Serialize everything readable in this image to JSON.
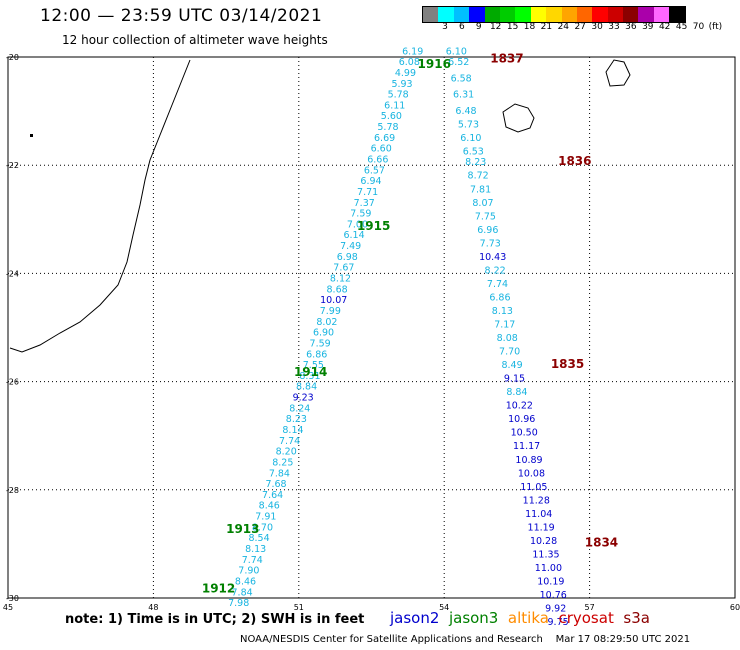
{
  "header": {
    "title": "12:00 — 23:59 UTC 03/14/2021",
    "subtitle": "12 hour collection of altimeter wave heights"
  },
  "colorbar": {
    "colors": [
      "#808080",
      "#00ffff",
      "#00bfff",
      "#0000ff",
      "#00aa00",
      "#00cc00",
      "#00ff00",
      "#ffff00",
      "#ffd700",
      "#ffa500",
      "#ff6600",
      "#ff0000",
      "#cc0000",
      "#8b0000",
      "#aa00aa",
      "#ff66ff",
      "#000000"
    ],
    "labels": [
      "3",
      "6",
      "9",
      "12",
      "15",
      "18",
      "21",
      "24",
      "27",
      "30",
      "33",
      "36",
      "39",
      "42",
      "45",
      "70",
      "(ft)"
    ]
  },
  "map": {
    "lat_labels": [
      "-20",
      "-22",
      "-24",
      "-26",
      "-28",
      "-30"
    ],
    "lon_labels": [
      "45",
      "48",
      "51",
      "54",
      "57",
      "60"
    ],
    "satellite_colors": {
      "jason2": "#0000cc",
      "jason3": "#008000",
      "altika": "#ff8c00",
      "cryosat": "#cc0000",
      "s3a": "#8b0000"
    },
    "pass_labels": [
      {
        "text": "1916",
        "lon": 53.45,
        "lat": -20.2,
        "color": "#008000"
      },
      {
        "text": "1837",
        "lon": 54.95,
        "lat": -20.1,
        "color": "#8b0000"
      },
      {
        "text": "1836",
        "lon": 56.35,
        "lat": -22.0,
        "color": "#8b0000"
      },
      {
        "text": "1915",
        "lon": 52.2,
        "lat": -23.2,
        "color": "#008000"
      },
      {
        "text": "1835",
        "lon": 56.2,
        "lat": -25.75,
        "color": "#8b0000"
      },
      {
        "text": "1914",
        "lon": 50.9,
        "lat": -25.9,
        "color": "#008000"
      },
      {
        "text": "1913",
        "lon": 49.5,
        "lat": -28.8,
        "color": "#008000"
      },
      {
        "text": "1834",
        "lon": 56.9,
        "lat": -29.05,
        "color": "#8b0000"
      },
      {
        "text": "1912",
        "lon": 49.0,
        "lat": -29.9,
        "color": "#008000"
      }
    ],
    "tracks": [
      {
        "name": "jason3-west",
        "points": [
          {
            "lon": 53.35,
            "lat": -19.95,
            "v": "6.19"
          },
          {
            "lon": 53.28,
            "lat": -20.15,
            "v": "6.08"
          },
          {
            "lon": 53.2,
            "lat": -20.35,
            "v": "4.99"
          },
          {
            "lon": 53.13,
            "lat": -20.55,
            "v": "5.93"
          },
          {
            "lon": 53.05,
            "lat": -20.75,
            "v": "5.78"
          },
          {
            "lon": 52.98,
            "lat": -20.95,
            "v": "6.11"
          },
          {
            "lon": 52.91,
            "lat": -21.15,
            "v": "5.60"
          },
          {
            "lon": 52.84,
            "lat": -21.35,
            "v": "5.78"
          },
          {
            "lon": 52.77,
            "lat": -21.55,
            "v": "6.69"
          },
          {
            "lon": 52.7,
            "lat": -21.75,
            "v": "6.60"
          },
          {
            "lon": 52.63,
            "lat": -21.95,
            "v": "6.66"
          },
          {
            "lon": 52.56,
            "lat": -22.15,
            "v": "6.57"
          },
          {
            "lon": 52.49,
            "lat": -22.35,
            "v": "6.94"
          },
          {
            "lon": 52.42,
            "lat": -22.55,
            "v": "7.71"
          },
          {
            "lon": 52.35,
            "lat": -22.75,
            "v": "7.37"
          },
          {
            "lon": 52.28,
            "lat": -22.95,
            "v": "7.59"
          },
          {
            "lon": 52.21,
            "lat": -23.15,
            "v": "7.00"
          },
          {
            "lon": 52.14,
            "lat": -23.35,
            "v": "6.14"
          },
          {
            "lon": 52.07,
            "lat": -23.55,
            "v": "7.49"
          },
          {
            "lon": 52.0,
            "lat": -23.75,
            "v": "6.98"
          },
          {
            "lon": 51.93,
            "lat": -23.95,
            "v": "7.67"
          },
          {
            "lon": 51.86,
            "lat": -24.15,
            "v": "8.12"
          },
          {
            "lon": 51.79,
            "lat": -24.35,
            "v": "8.68"
          },
          {
            "lon": 51.72,
            "lat": -24.55,
            "v": "10.07"
          },
          {
            "lon": 51.65,
            "lat": -24.75,
            "v": "7.99"
          },
          {
            "lon": 51.58,
            "lat": -24.95,
            "v": "8.02"
          },
          {
            "lon": 51.51,
            "lat": -25.15,
            "v": "6.90"
          },
          {
            "lon": 51.44,
            "lat": -25.35,
            "v": "7.59"
          },
          {
            "lon": 51.37,
            "lat": -25.55,
            "v": "6.86"
          },
          {
            "lon": 51.3,
            "lat": -25.75,
            "v": "7.55"
          },
          {
            "lon": 51.23,
            "lat": -25.95,
            "v": "8.31"
          },
          {
            "lon": 51.16,
            "lat": -26.15,
            "v": "8.84"
          },
          {
            "lon": 51.09,
            "lat": -26.35,
            "v": "9.23"
          },
          {
            "lon": 51.02,
            "lat": -26.55,
            "v": "8.24"
          },
          {
            "lon": 50.95,
            "lat": -26.75,
            "v": "8.23"
          },
          {
            "lon": 50.88,
            "lat": -26.95,
            "v": "8.14"
          },
          {
            "lon": 50.81,
            "lat": -27.15,
            "v": "7.74"
          },
          {
            "lon": 50.74,
            "lat": -27.35,
            "v": "8.20"
          },
          {
            "lon": 50.67,
            "lat": -27.55,
            "v": "8.25"
          },
          {
            "lon": 50.6,
            "lat": -27.75,
            "v": "7.84"
          },
          {
            "lon": 50.53,
            "lat": -27.95,
            "v": "7.68"
          },
          {
            "lon": 50.46,
            "lat": -28.15,
            "v": "7.64"
          },
          {
            "lon": 50.39,
            "lat": -28.35,
            "v": "8.46"
          },
          {
            "lon": 50.32,
            "lat": -28.55,
            "v": "7.91"
          },
          {
            "lon": 50.25,
            "lat": -28.75,
            "v": "8.70"
          },
          {
            "lon": 50.18,
            "lat": -28.95,
            "v": "8.54"
          },
          {
            "lon": 50.11,
            "lat": -29.15,
            "v": "8.13"
          },
          {
            "lon": 50.04,
            "lat": -29.35,
            "v": "7.74"
          },
          {
            "lon": 49.97,
            "lat": -29.55,
            "v": "7.90"
          },
          {
            "lon": 49.9,
            "lat": -29.75,
            "v": "8.46"
          },
          {
            "lon": 49.83,
            "lat": -29.95,
            "v": "7.84"
          },
          {
            "lon": 49.76,
            "lat": -30.15,
            "v": "7.98"
          }
        ]
      },
      {
        "name": "jason3-east",
        "points": [
          {
            "lon": 54.25,
            "lat": -19.95,
            "v": "6.10"
          },
          {
            "lon": 54.3,
            "lat": -20.15,
            "v": "6.52"
          },
          {
            "lon": 54.35,
            "lat": -20.45,
            "v": "6.58"
          },
          {
            "lon": 54.4,
            "lat": -20.75,
            "v": "6.31"
          },
          {
            "lon": 54.45,
            "lat": -21.05,
            "v": "6.48"
          },
          {
            "lon": 54.5,
            "lat": -21.3,
            "v": "5.73"
          },
          {
            "lon": 54.55,
            "lat": -21.55,
            "v": "6.10"
          },
          {
            "lon": 54.6,
            "lat": -21.8,
            "v": "6.53"
          },
          {
            "lon": 54.65,
            "lat": -22.0,
            "v": "8.23"
          },
          {
            "lon": 54.7,
            "lat": -22.25,
            "v": "8.72"
          },
          {
            "lon": 54.75,
            "lat": -22.5,
            "v": "7.81"
          },
          {
            "lon": 54.8,
            "lat": -22.75,
            "v": "8.07"
          },
          {
            "lon": 54.85,
            "lat": -23.0,
            "v": "7.75"
          },
          {
            "lon": 54.9,
            "lat": -23.25,
            "v": "6.96"
          },
          {
            "lon": 54.95,
            "lat": -23.5,
            "v": "7.73"
          },
          {
            "lon": 55.0,
            "lat": -23.75,
            "v": "10.43"
          },
          {
            "lon": 55.05,
            "lat": -24.0,
            "v": "8.22"
          },
          {
            "lon": 55.1,
            "lat": -24.25,
            "v": "7.74"
          },
          {
            "lon": 55.15,
            "lat": -24.5,
            "v": "6.86"
          },
          {
            "lon": 55.2,
            "lat": -24.75,
            "v": "8.13"
          },
          {
            "lon": 55.25,
            "lat": -25.0,
            "v": "7.17"
          },
          {
            "lon": 55.3,
            "lat": -25.25,
            "v": "8.08"
          },
          {
            "lon": 55.35,
            "lat": -25.5,
            "v": "7.70"
          },
          {
            "lon": 55.4,
            "lat": -25.75,
            "v": "8.49"
          },
          {
            "lon": 55.45,
            "lat": -26.0,
            "v": "9.15"
          },
          {
            "lon": 55.5,
            "lat": -26.25,
            "v": "8.84"
          },
          {
            "lon": 55.55,
            "lat": -26.5,
            "v": "10.22"
          },
          {
            "lon": 55.6,
            "lat": -26.75,
            "v": "10.96"
          },
          {
            "lon": 55.65,
            "lat": -27.0,
            "v": "10.50"
          },
          {
            "lon": 55.7,
            "lat": -27.25,
            "v": "11.17"
          },
          {
            "lon": 55.75,
            "lat": -27.5,
            "v": "10.89"
          },
          {
            "lon": 55.8,
            "lat": -27.75,
            "v": "10.08"
          },
          {
            "lon": 55.85,
            "lat": -28.0,
            "v": "11.05"
          },
          {
            "lon": 55.9,
            "lat": -28.25,
            "v": "11.28"
          },
          {
            "lon": 55.95,
            "lat": -28.5,
            "v": "11.04"
          },
          {
            "lon": 56.0,
            "lat": -28.75,
            "v": "11.19"
          },
          {
            "lon": 56.05,
            "lat": -29.0,
            "v": "10.28"
          },
          {
            "lon": 56.1,
            "lat": -29.25,
            "v": "11.35"
          },
          {
            "lon": 56.15,
            "lat": -29.5,
            "v": "11.00"
          },
          {
            "lon": 56.2,
            "lat": -29.75,
            "v": "10.19"
          },
          {
            "lon": 56.25,
            "lat": -30.0,
            "v": "10.76"
          },
          {
            "lon": 56.3,
            "lat": -30.25,
            "v": "9.92"
          },
          {
            "lon": 56.35,
            "lat": -30.5,
            "v": "9.75"
          }
        ]
      }
    ]
  },
  "footer": {
    "note": "note: 1) Time is in UTC; 2) SWH is in feet",
    "satellites": [
      {
        "name": "jason2",
        "color": "#0000cc"
      },
      {
        "name": "jason3",
        "color": "#008000"
      },
      {
        "name": "altika",
        "color": "#ff8c00"
      },
      {
        "name": "cryosat",
        "color": "#cc0000"
      },
      {
        "name": "s3a",
        "color": "#8b0000"
      }
    ],
    "credit": "NOAA/NESDIS Center for Satellite Applications and Research    Mar 17 08:29:50 UTC 2021"
  }
}
